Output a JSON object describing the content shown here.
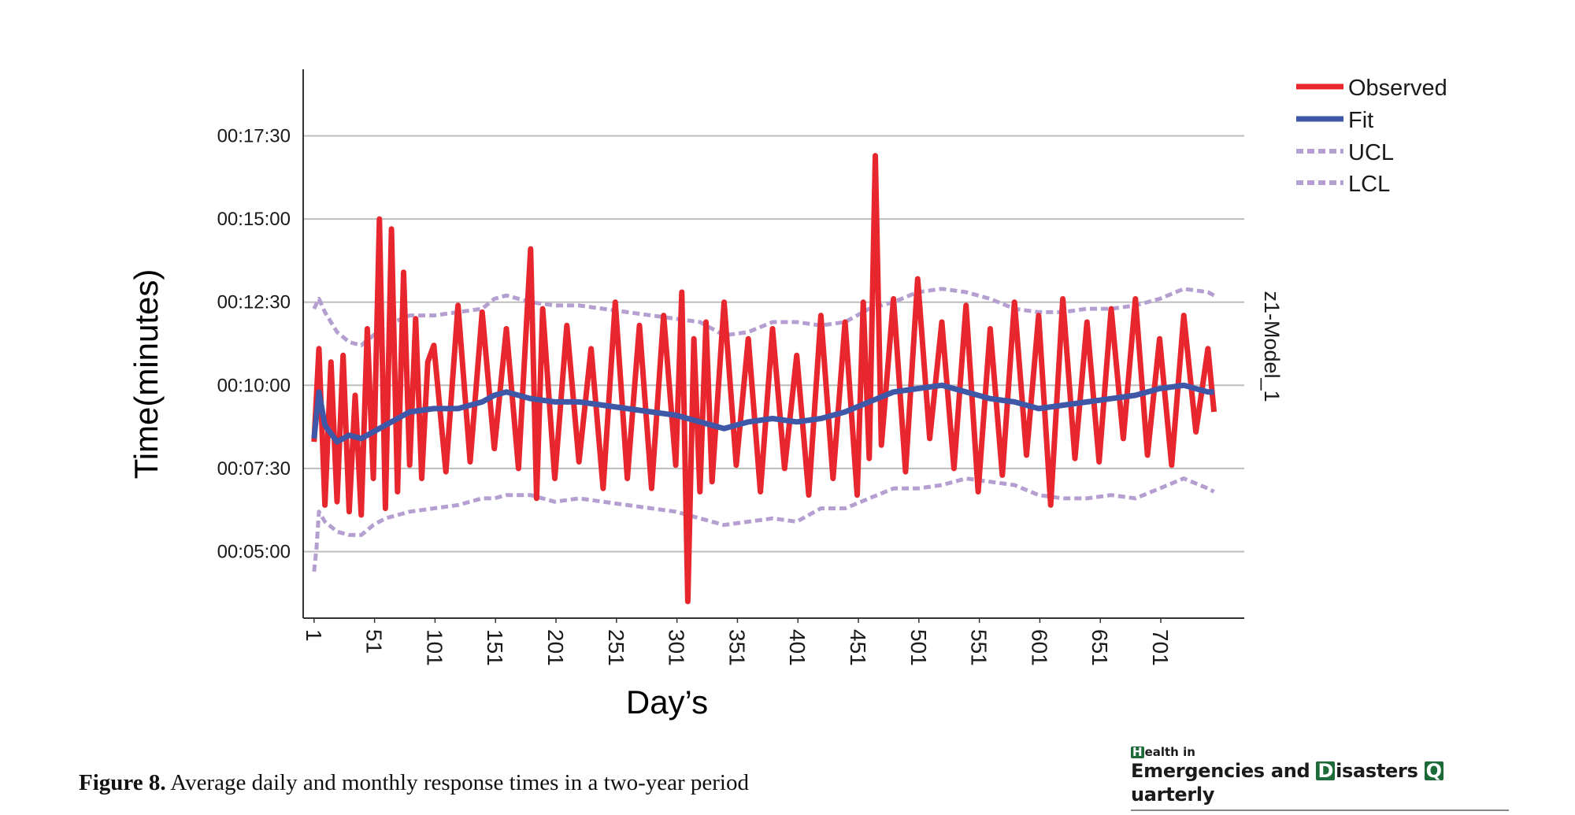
{
  "chart_data": {
    "type": "line",
    "ylabel": "Time(minutes)",
    "xlabel": "Day’s",
    "panel_label": "z1-Model_1",
    "y_unit": "minutes",
    "ylim_minutes": [
      3,
      19.5
    ],
    "xlim": [
      -8,
      770
    ],
    "y_ticks": [
      {
        "value": 5,
        "label": "00:05:00"
      },
      {
        "value": 7.5,
        "label": "00:07:30"
      },
      {
        "value": 10,
        "label": "00:10:00"
      },
      {
        "value": 12.5,
        "label": "00:12:30"
      },
      {
        "value": 15,
        "label": "00:15:00"
      },
      {
        "value": 17.5,
        "label": "00:17:30"
      }
    ],
    "x_ticks": [
      1,
      51,
      101,
      151,
      201,
      251,
      301,
      351,
      401,
      451,
      501,
      551,
      601,
      651,
      701
    ],
    "x_tick_labels": [
      "1",
      "51",
      "101",
      "151",
      "201",
      "251",
      "301",
      "351",
      "401",
      "451",
      "501",
      "551",
      "601",
      "651",
      "701"
    ],
    "grid": "horizontal",
    "legend_position": "top-right",
    "series": [
      {
        "name": "Observed",
        "color": "#e8262e",
        "style": "solid",
        "x": [
          1,
          5,
          10,
          15,
          20,
          25,
          30,
          35,
          40,
          45,
          50,
          55,
          60,
          65,
          70,
          75,
          80,
          85,
          90,
          95,
          100,
          110,
          120,
          130,
          140,
          150,
          160,
          170,
          180,
          185,
          190,
          200,
          210,
          220,
          230,
          240,
          250,
          260,
          270,
          280,
          290,
          300,
          305,
          310,
          315,
          320,
          325,
          330,
          340,
          350,
          360,
          370,
          380,
          390,
          400,
          410,
          420,
          430,
          440,
          450,
          455,
          460,
          465,
          470,
          480,
          490,
          500,
          510,
          520,
          530,
          540,
          550,
          560,
          570,
          580,
          590,
          600,
          610,
          620,
          630,
          640,
          650,
          660,
          670,
          680,
          690,
          700,
          710,
          720,
          730,
          740,
          745
        ],
        "y": [
          8.3,
          11.1,
          6.4,
          10.7,
          6.5,
          10.9,
          6.2,
          9.7,
          6.1,
          11.7,
          7.2,
          15,
          6.3,
          14.7,
          6.8,
          13.4,
          7.6,
          12,
          7.2,
          10.7,
          11.2,
          7.4,
          12.4,
          7.7,
          12.2,
          8.1,
          11.7,
          7.5,
          14.1,
          6.6,
          12.3,
          7.2,
          11.8,
          7.7,
          11.1,
          6.9,
          12.5,
          7.2,
          11.8,
          6.9,
          12.1,
          7.6,
          12.8,
          3.5,
          11.4,
          6.8,
          11.9,
          7.1,
          12.5,
          7.6,
          11.4,
          6.8,
          11.7,
          7.5,
          10.9,
          6.7,
          12.1,
          7.2,
          11.9,
          6.7,
          12.5,
          7.8,
          16.9,
          8.2,
          12.6,
          7.4,
          13.2,
          8.4,
          11.9,
          7.5,
          12.4,
          6.8,
          11.7,
          7.3,
          12.5,
          7.9,
          12.1,
          6.4,
          12.6,
          7.8,
          11.9,
          7.7,
          12.3,
          8.4,
          12.6,
          7.9,
          11.4,
          7.6,
          12.1,
          8.6,
          11.1,
          9.2
        ]
      },
      {
        "name": "Fit",
        "color": "#3f57a7",
        "style": "solid",
        "x": [
          1,
          5,
          10,
          20,
          30,
          40,
          50,
          60,
          80,
          100,
          120,
          140,
          150,
          160,
          180,
          200,
          220,
          240,
          260,
          280,
          300,
          320,
          340,
          360,
          380,
          400,
          420,
          440,
          460,
          480,
          500,
          520,
          540,
          560,
          580,
          600,
          620,
          640,
          660,
          680,
          700,
          720,
          740,
          745
        ],
        "y": [
          8.4,
          9.8,
          8.8,
          8.3,
          8.5,
          8.4,
          8.6,
          8.8,
          9.2,
          9.3,
          9.3,
          9.5,
          9.7,
          9.8,
          9.6,
          9.5,
          9.5,
          9.4,
          9.3,
          9.2,
          9.1,
          8.9,
          8.7,
          8.9,
          9.0,
          8.9,
          9.0,
          9.2,
          9.5,
          9.8,
          9.9,
          10.0,
          9.8,
          9.6,
          9.5,
          9.3,
          9.4,
          9.5,
          9.6,
          9.7,
          9.9,
          10.0,
          9.8,
          9.8
        ]
      },
      {
        "name": "UCL",
        "color": "#b49fd0",
        "style": "dashed",
        "x": [
          1,
          5,
          10,
          20,
          30,
          40,
          50,
          60,
          80,
          100,
          120,
          140,
          150,
          160,
          180,
          200,
          220,
          240,
          260,
          280,
          300,
          320,
          340,
          360,
          380,
          400,
          420,
          440,
          460,
          480,
          500,
          520,
          540,
          560,
          580,
          600,
          620,
          640,
          660,
          680,
          700,
          720,
          740,
          745
        ],
        "y": [
          12.3,
          12.6,
          12.2,
          11.6,
          11.3,
          11.2,
          11.5,
          11.8,
          12.1,
          12.1,
          12.2,
          12.3,
          12.6,
          12.7,
          12.5,
          12.4,
          12.4,
          12.3,
          12.2,
          12.1,
          12.0,
          11.9,
          11.5,
          11.6,
          11.9,
          11.9,
          11.8,
          11.9,
          12.3,
          12.5,
          12.8,
          12.9,
          12.8,
          12.6,
          12.3,
          12.2,
          12.2,
          12.3,
          12.3,
          12.4,
          12.6,
          12.9,
          12.8,
          12.7
        ]
      },
      {
        "name": "LCL",
        "color": "#b49fd0",
        "style": "dashed",
        "x": [
          1,
          3,
          5,
          10,
          20,
          30,
          40,
          50,
          60,
          80,
          100,
          120,
          140,
          150,
          160,
          180,
          200,
          220,
          240,
          260,
          280,
          300,
          320,
          340,
          360,
          380,
          400,
          420,
          440,
          460,
          480,
          500,
          520,
          540,
          560,
          580,
          600,
          620,
          640,
          660,
          680,
          700,
          720,
          740,
          745
        ],
        "y": [
          4.4,
          5.1,
          6.2,
          5.9,
          5.6,
          5.5,
          5.5,
          5.8,
          6.0,
          6.2,
          6.3,
          6.4,
          6.6,
          6.6,
          6.7,
          6.7,
          6.5,
          6.6,
          6.5,
          6.4,
          6.3,
          6.2,
          6.0,
          5.8,
          5.9,
          6.0,
          5.9,
          6.3,
          6.3,
          6.6,
          6.9,
          6.9,
          7.0,
          7.2,
          7.1,
          7.0,
          6.7,
          6.6,
          6.6,
          6.7,
          6.6,
          6.9,
          7.2,
          6.9,
          6.8
        ]
      }
    ]
  },
  "caption": {
    "label": "Figure 8.",
    "text": " Average daily and monthly response times in a two-year period"
  },
  "journal": {
    "line1_initial": "H",
    "line1_rest": "ealth in",
    "w1_initial": "E",
    "w1_rest": "mergencies and ",
    "w2_initial": "D",
    "w2_rest": "isasters ",
    "w3_initial": "Q",
    "w3_rest": "uarterly",
    "brand_color": "#1e6b3a"
  }
}
